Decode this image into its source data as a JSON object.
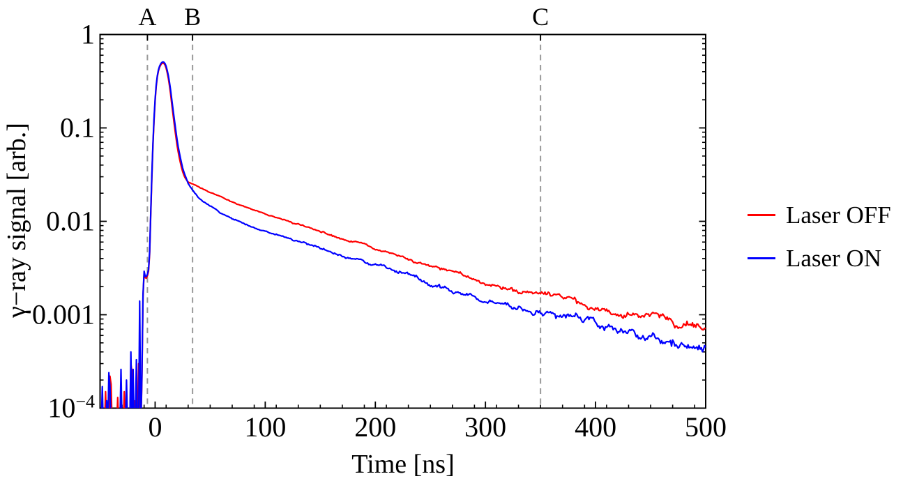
{
  "figure": {
    "background_color": "#ffffff",
    "frame_color": "#000000",
    "text_color": "#000000",
    "marker_line_color": "#999999"
  },
  "chart_data": {
    "type": "line",
    "title": "",
    "xlabel": "Time [ns]",
    "ylabel": "γ−ray signal [arb.]",
    "x_axis": {
      "min": -50,
      "max": 500,
      "unit": "ns",
      "major_ticks": [
        0,
        100,
        200,
        300,
        400,
        500
      ],
      "major_tick_labels": [
        "0",
        "100",
        "200",
        "300",
        "400",
        "500"
      ],
      "minor_tick_step": 20
    },
    "y_axis": {
      "scale": "log",
      "min": 0.0001,
      "max": 1,
      "major_ticks": [
        1,
        0.1,
        0.01,
        0.001,
        0.0001
      ],
      "major_tick_labels": [
        "1",
        "0.1",
        "0.01",
        "0.001",
        "10^−4"
      ],
      "minor_ticks": "log-decades 2-9"
    },
    "grid": false,
    "markers": [
      {
        "label": "A",
        "t_ns": -7
      },
      {
        "label": "B",
        "t_ns": 34
      },
      {
        "label": "C",
        "t_ns": 350
      }
    ],
    "legend": {
      "position": "outside-right",
      "entries": [
        {
          "label": "Laser OFF",
          "color": "#ff0000"
        },
        {
          "label": "Laser ON",
          "color": "#0000ff"
        }
      ]
    },
    "series": [
      {
        "name": "Laser OFF",
        "color": "#ff0000",
        "baseline_level": 6e-05,
        "baseline_spikes": [
          [
            -45,
            0.00015
          ],
          [
            -41,
            0.00022
          ],
          [
            -40,
            0.00018
          ],
          [
            -34,
            0.00013
          ],
          [
            -28,
            0.00015
          ],
          [
            -22,
            0.0003
          ],
          [
            -21,
            0.00024
          ],
          [
            -19,
            0.00012
          ],
          [
            -15,
            0.0003
          ]
        ],
        "points": [
          [
            -13,
            6e-05
          ],
          [
            -12,
            0.0002
          ],
          [
            -11.2,
            0.0012
          ],
          [
            -10.6,
            0.0026
          ],
          [
            -9.8,
            0.0029
          ],
          [
            -8.8,
            0.0024
          ],
          [
            -7.5,
            0.0025
          ],
          [
            -6.2,
            0.0028
          ],
          [
            -5.3,
            0.0034
          ],
          [
            -4.5,
            0.007
          ],
          [
            -3.5,
            0.018
          ],
          [
            -2.5,
            0.045
          ],
          [
            -1.5,
            0.09
          ],
          [
            -0.5,
            0.16
          ],
          [
            0.5,
            0.24
          ],
          [
            1.5,
            0.32
          ],
          [
            2.5,
            0.385
          ],
          [
            3.5,
            0.43
          ],
          [
            4.5,
            0.46
          ],
          [
            5.5,
            0.482
          ],
          [
            6.5,
            0.494
          ],
          [
            7.5,
            0.495
          ],
          [
            8.5,
            0.483
          ],
          [
            9.5,
            0.458
          ],
          [
            10.5,
            0.418
          ],
          [
            12,
            0.34
          ],
          [
            13.5,
            0.26
          ],
          [
            15,
            0.185
          ],
          [
            16.5,
            0.132
          ],
          [
            18,
            0.095
          ],
          [
            19.5,
            0.07
          ],
          [
            21,
            0.055
          ],
          [
            22.5,
            0.0445
          ],
          [
            24,
            0.0375
          ],
          [
            25.5,
            0.0327
          ],
          [
            27,
            0.0296
          ],
          [
            28.5,
            0.0277
          ],
          [
            30,
            0.0265
          ],
          [
            32,
            0.0257
          ],
          [
            34,
            0.0251
          ],
          [
            36,
            0.0245
          ],
          [
            40,
            0.0233
          ],
          [
            45,
            0.0219
          ],
          [
            50,
            0.0206
          ],
          [
            55,
            0.0195
          ],
          [
            60,
            0.0185
          ],
          [
            70,
            0.0163
          ],
          [
            80,
            0.0147
          ],
          [
            90,
            0.0132
          ],
          [
            100,
            0.012
          ],
          [
            110,
            0.011
          ],
          [
            120,
            0.0101
          ],
          [
            130,
            0.0093
          ],
          [
            140,
            0.0086
          ],
          [
            150,
            0.0076
          ],
          [
            160,
            0.0071
          ],
          [
            170,
            0.0065
          ],
          [
            180,
            0.006
          ],
          [
            190,
            0.0055
          ],
          [
            200,
            0.0051
          ],
          [
            215,
            0.0045
          ],
          [
            230,
            0.004
          ],
          [
            250,
            0.0032
          ],
          [
            265,
            0.0029
          ],
          [
            280,
            0.0026
          ],
          [
            300,
            0.0022
          ],
          [
            320,
            0.00195
          ],
          [
            335,
            0.00175
          ],
          [
            350,
            0.0016
          ],
          [
            365,
            0.00148
          ],
          [
            380,
            0.00136
          ],
          [
            400,
            0.00123
          ],
          [
            420,
            0.00108
          ],
          [
            435,
            0.001
          ],
          [
            450,
            0.00091
          ],
          [
            465,
            0.00083
          ],
          [
            480,
            0.00076
          ],
          [
            490,
            0.00071
          ],
          [
            500,
            0.00068
          ]
        ],
        "noise_log10_amp": [
          0.004,
          0.05
        ],
        "noise_seed": 101
      },
      {
        "name": "Laser ON",
        "color": "#0000ff",
        "baseline_level": 6e-05,
        "baseline_spikes": [
          [
            -48,
            0.00017
          ],
          [
            -44,
            0.00012
          ],
          [
            -42,
            0.00024
          ],
          [
            -41,
            0.00017
          ],
          [
            -31,
            0.00026
          ],
          [
            -26,
            0.0002
          ],
          [
            -22,
            0.0004
          ],
          [
            -20,
            0.00026
          ],
          [
            -17,
            0.00033
          ],
          [
            -14,
            0.0014
          ]
        ],
        "points": [
          [
            -13,
            6e-05
          ],
          [
            -12,
            0.00022
          ],
          [
            -11.2,
            0.0013
          ],
          [
            -10.6,
            0.0027
          ],
          [
            -9.8,
            0.003
          ],
          [
            -8.8,
            0.0025
          ],
          [
            -7.5,
            0.0026
          ],
          [
            -6.2,
            0.0029
          ],
          [
            -5.3,
            0.0036
          ],
          [
            -4.5,
            0.0075
          ],
          [
            -3.5,
            0.019
          ],
          [
            -2.5,
            0.048
          ],
          [
            -1.5,
            0.095
          ],
          [
            -0.5,
            0.17
          ],
          [
            0.5,
            0.25
          ],
          [
            1.5,
            0.33
          ],
          [
            2.5,
            0.395
          ],
          [
            3.5,
            0.442
          ],
          [
            4.5,
            0.473
          ],
          [
            5.5,
            0.495
          ],
          [
            6.5,
            0.508
          ],
          [
            7.5,
            0.51
          ],
          [
            8.5,
            0.499
          ],
          [
            9.5,
            0.477
          ],
          [
            10.5,
            0.44
          ],
          [
            12,
            0.364
          ],
          [
            13.5,
            0.285
          ],
          [
            15,
            0.208
          ],
          [
            16.5,
            0.15
          ],
          [
            18,
            0.11
          ],
          [
            19.5,
            0.081
          ],
          [
            21,
            0.0625
          ],
          [
            22.5,
            0.0505
          ],
          [
            24,
            0.0418
          ],
          [
            25.5,
            0.0357
          ],
          [
            27,
            0.0315
          ],
          [
            28.5,
            0.0283
          ],
          [
            30,
            0.0257
          ],
          [
            32,
            0.0234
          ],
          [
            34,
            0.0216
          ],
          [
            36,
            0.0202
          ],
          [
            40,
            0.0179
          ],
          [
            45,
            0.0161
          ],
          [
            50,
            0.0147
          ],
          [
            55,
            0.0135
          ],
          [
            60,
            0.0121
          ],
          [
            70,
            0.0106
          ],
          [
            80,
            0.0095
          ],
          [
            90,
            0.0086
          ],
          [
            100,
            0.0078
          ],
          [
            110,
            0.0072
          ],
          [
            120,
            0.0066
          ],
          [
            130,
            0.0061
          ],
          [
            140,
            0.0056
          ],
          [
            150,
            0.005
          ],
          [
            160,
            0.0047
          ],
          [
            170,
            0.0043
          ],
          [
            180,
            0.004
          ],
          [
            190,
            0.0037
          ],
          [
            200,
            0.0035
          ],
          [
            215,
            0.0031
          ],
          [
            230,
            0.0027
          ],
          [
            250,
            0.0021
          ],
          [
            265,
            0.0019
          ],
          [
            280,
            0.0017
          ],
          [
            300,
            0.0015
          ],
          [
            320,
            0.00133
          ],
          [
            335,
            0.00121
          ],
          [
            350,
            0.00112
          ],
          [
            365,
            0.001
          ],
          [
            380,
            0.0009
          ],
          [
            400,
            0.00081
          ],
          [
            420,
            0.00071
          ],
          [
            435,
            0.00066
          ],
          [
            450,
            0.0006
          ],
          [
            465,
            0.00054
          ],
          [
            480,
            0.00049
          ],
          [
            490,
            0.00046
          ],
          [
            500,
            0.00044
          ]
        ],
        "noise_log10_amp": [
          0.005,
          0.062
        ],
        "noise_seed": 202
      }
    ]
  }
}
